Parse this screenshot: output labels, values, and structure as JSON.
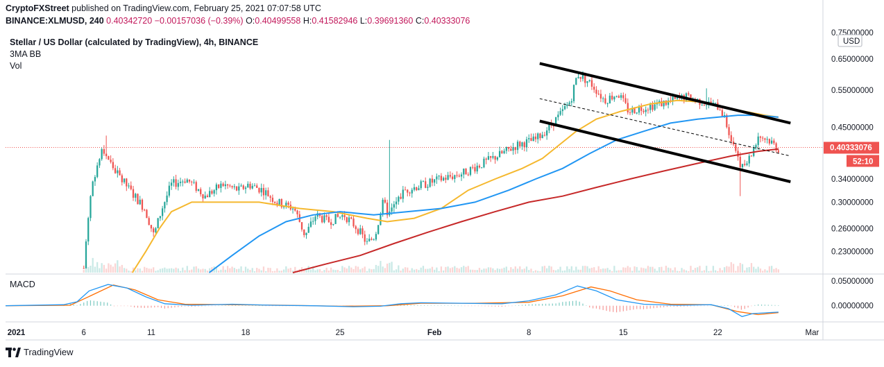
{
  "header": {
    "line1_publisher": "CryptoFXStreet",
    "line1_rest": "published on TradingView.com, February 25, 2021 07:07:58 UTC",
    "symbol": "BINANCE:XLMUSD, 240",
    "last": "0.40342720",
    "change": "−0.00157036 (−0.39%)",
    "o_label": "O:",
    "o": "0.40499558",
    "h_label": "H:",
    "h": "0.41582946",
    "l_label": "L:",
    "l": "0.39691360",
    "c_label": "C:",
    "c": "0.40333076"
  },
  "legend": {
    "title": "Stellar / US Dollar (calculated by TradingView), 4h, BINANCE",
    "indicator": "3MA BB",
    "volume": "Vol"
  },
  "macd_label": "MACD",
  "currency": "USD",
  "price_tag": "0.40333076",
  "countdown": "52:10",
  "footer": {
    "brand": "TradingView"
  },
  "colors": {
    "up": "#26a69a",
    "down": "#ef5350",
    "ma_fast": "#f5b82e",
    "ma_mid": "#2196f3",
    "ma_slow": "#c62828",
    "macd": "#2196f3",
    "signal": "#ff6d00",
    "price_tag": "#ef5350"
  },
  "chart_data": {
    "type": "candlestick",
    "y_axis": {
      "scale": "log",
      "range": [
        0.205,
        0.77
      ],
      "ticks": [
        "0.75000000",
        "0.65000000",
        "0.55000000",
        "0.45000000",
        "0.34000000",
        "0.30000000",
        "0.26000000",
        "0.23000000"
      ],
      "tick_values": [
        0.75,
        0.65,
        0.55,
        0.45,
        0.34,
        0.3,
        0.26,
        0.23
      ]
    },
    "macd_axis": {
      "range": [
        -0.03,
        0.06
      ],
      "ticks": [
        "0.05000000",
        "0.00000000"
      ],
      "tick_values": [
        0.05,
        0.0
      ]
    },
    "x_axis": {
      "ticks": [
        "2021",
        "6",
        "11",
        "18",
        "25",
        "Feb",
        "8",
        "15",
        "22",
        "Mar"
      ],
      "tick_days": [
        0,
        5,
        10,
        17,
        24,
        31,
        38,
        45,
        52,
        59
      ],
      "range_days": [
        -0.8,
        59.8
      ]
    },
    "last_price": 0.40333,
    "price_path": [
      [
        5.0,
        0.21
      ],
      [
        5.6,
        0.33
      ],
      [
        6.4,
        0.4
      ],
      [
        7.2,
        0.36
      ],
      [
        8.4,
        0.32
      ],
      [
        9.5,
        0.29
      ],
      [
        10.2,
        0.25
      ],
      [
        10.8,
        0.29
      ],
      [
        11.5,
        0.33
      ],
      [
        12.6,
        0.34
      ],
      [
        14.0,
        0.31
      ],
      [
        15.3,
        0.33
      ],
      [
        16.5,
        0.32
      ],
      [
        17.2,
        0.33
      ],
      [
        18.3,
        0.32
      ],
      [
        19.3,
        0.3
      ],
      [
        20.6,
        0.29
      ],
      [
        21.4,
        0.25
      ],
      [
        22.2,
        0.28
      ],
      [
        23.1,
        0.27
      ],
      [
        24.3,
        0.28
      ],
      [
        25.3,
        0.26
      ],
      [
        26.0,
        0.24
      ],
      [
        26.6,
        0.25
      ],
      [
        27.2,
        0.3
      ],
      [
        27.6,
        0.28
      ],
      [
        28.8,
        0.32
      ],
      [
        30.2,
        0.33
      ],
      [
        31.5,
        0.34
      ],
      [
        33.0,
        0.35
      ],
      [
        34.6,
        0.37
      ],
      [
        36.0,
        0.39
      ],
      [
        37.2,
        0.41
      ],
      [
        38.5,
        0.42
      ],
      [
        39.5,
        0.45
      ],
      [
        40.3,
        0.48
      ],
      [
        41.1,
        0.52
      ],
      [
        41.6,
        0.6
      ],
      [
        42.6,
        0.57
      ],
      [
        43.6,
        0.52
      ],
      [
        44.6,
        0.54
      ],
      [
        45.4,
        0.49
      ],
      [
        46.4,
        0.5
      ],
      [
        47.6,
        0.51
      ],
      [
        48.8,
        0.52
      ],
      [
        49.6,
        0.53
      ],
      [
        50.5,
        0.52
      ],
      [
        51.4,
        0.51
      ],
      [
        52.2,
        0.5
      ],
      [
        52.6,
        0.46
      ],
      [
        53.2,
        0.41
      ],
      [
        53.8,
        0.36
      ],
      [
        54.4,
        0.38
      ],
      [
        55.0,
        0.43
      ],
      [
        55.8,
        0.42
      ],
      [
        56.5,
        0.4
      ]
    ],
    "spikes": [
      {
        "day": 53.6,
        "low": 0.31
      },
      {
        "day": 6.7,
        "high": 0.43
      },
      {
        "day": 51.2,
        "high": 0.555
      },
      {
        "day": 27.6,
        "high": 0.42
      }
    ],
    "ma_fast": [
      [
        8.6,
        0.205
      ],
      [
        9.6,
        0.23
      ],
      [
        10.6,
        0.26
      ],
      [
        11.5,
        0.285
      ],
      [
        13.0,
        0.3
      ],
      [
        15.0,
        0.3
      ],
      [
        18.0,
        0.3
      ],
      [
        21.0,
        0.29
      ],
      [
        23.5,
        0.285
      ],
      [
        26.0,
        0.275
      ],
      [
        27.5,
        0.27
      ],
      [
        29.5,
        0.275
      ],
      [
        31.5,
        0.29
      ],
      [
        33.5,
        0.32
      ],
      [
        35.5,
        0.34
      ],
      [
        37.5,
        0.36
      ],
      [
        39.0,
        0.38
      ],
      [
        40.3,
        0.41
      ],
      [
        41.5,
        0.44
      ],
      [
        43.0,
        0.47
      ],
      [
        44.8,
        0.49
      ],
      [
        47.0,
        0.51
      ],
      [
        49.0,
        0.52
      ],
      [
        51.0,
        0.515
      ],
      [
        52.5,
        0.5
      ],
      [
        54.0,
        0.49
      ],
      [
        55.5,
        0.48
      ],
      [
        56.5,
        0.475
      ]
    ],
    "ma_mid": [
      [
        14.3,
        0.205
      ],
      [
        16.0,
        0.225
      ],
      [
        18.0,
        0.25
      ],
      [
        20.0,
        0.27
      ],
      [
        22.0,
        0.28
      ],
      [
        24.0,
        0.285
      ],
      [
        26.5,
        0.28
      ],
      [
        29.0,
        0.285
      ],
      [
        31.5,
        0.29
      ],
      [
        34.0,
        0.3
      ],
      [
        36.5,
        0.32
      ],
      [
        38.5,
        0.34
      ],
      [
        40.5,
        0.36
      ],
      [
        42.5,
        0.39
      ],
      [
        44.5,
        0.42
      ],
      [
        46.5,
        0.44
      ],
      [
        48.5,
        0.46
      ],
      [
        50.5,
        0.47
      ],
      [
        52.0,
        0.475
      ],
      [
        53.5,
        0.48
      ],
      [
        55.0,
        0.48
      ],
      [
        56.5,
        0.475
      ]
    ],
    "ma_slow": [
      [
        20.5,
        0.205
      ],
      [
        23.0,
        0.215
      ],
      [
        25.5,
        0.225
      ],
      [
        28.0,
        0.24
      ],
      [
        30.5,
        0.255
      ],
      [
        33.0,
        0.27
      ],
      [
        35.5,
        0.285
      ],
      [
        38.0,
        0.3
      ],
      [
        40.5,
        0.31
      ],
      [
        43.0,
        0.325
      ],
      [
        45.5,
        0.34
      ],
      [
        48.0,
        0.355
      ],
      [
        50.5,
        0.37
      ],
      [
        53.0,
        0.385
      ],
      [
        55.0,
        0.395
      ],
      [
        56.5,
        0.4
      ]
    ],
    "channel_upper": [
      [
        38.8,
        0.635
      ],
      [
        57.4,
        0.46
      ]
    ],
    "channel_lower": [
      [
        38.8,
        0.465
      ],
      [
        57.4,
        0.335
      ]
    ],
    "channel_mid": [
      [
        38.8,
        0.525
      ],
      [
        57.4,
        0.385
      ]
    ],
    "macd_line": [
      [
        -0.8,
        0.0
      ],
      [
        3.5,
        0.002
      ],
      [
        4.5,
        0.008
      ],
      [
        5.4,
        0.03
      ],
      [
        6.8,
        0.043
      ],
      [
        8.2,
        0.036
      ],
      [
        9.6,
        0.018
      ],
      [
        11.0,
        0.004
      ],
      [
        13.0,
        0.001
      ],
      [
        16.0,
        0.003
      ],
      [
        19.0,
        0.001
      ],
      [
        22.0,
        0.0
      ],
      [
        25.0,
        -0.002
      ],
      [
        27.0,
        -0.001
      ],
      [
        28.5,
        0.004
      ],
      [
        30.0,
        0.006
      ],
      [
        33.0,
        0.005
      ],
      [
        36.0,
        0.004
      ],
      [
        38.0,
        0.01
      ],
      [
        40.0,
        0.022
      ],
      [
        41.6,
        0.04
      ],
      [
        43.0,
        0.03
      ],
      [
        44.5,
        0.012
      ],
      [
        46.5,
        0.003
      ],
      [
        49.0,
        0.001
      ],
      [
        51.5,
        0.002
      ],
      [
        52.8,
        -0.006
      ],
      [
        53.8,
        -0.022
      ],
      [
        54.6,
        -0.016
      ],
      [
        56.5,
        -0.013
      ]
    ],
    "signal_line": [
      [
        -0.8,
        0.0
      ],
      [
        4.0,
        0.001
      ],
      [
        5.5,
        0.02
      ],
      [
        7.2,
        0.042
      ],
      [
        8.8,
        0.032
      ],
      [
        10.5,
        0.012
      ],
      [
        12.5,
        0.003
      ],
      [
        16.0,
        0.002
      ],
      [
        20.0,
        0.001
      ],
      [
        24.0,
        -0.001
      ],
      [
        27.5,
        0.0
      ],
      [
        30.0,
        0.005
      ],
      [
        34.0,
        0.005
      ],
      [
        38.0,
        0.007
      ],
      [
        40.5,
        0.02
      ],
      [
        42.6,
        0.038
      ],
      [
        44.0,
        0.03
      ],
      [
        46.0,
        0.012
      ],
      [
        48.5,
        0.003
      ],
      [
        51.5,
        0.002
      ],
      [
        53.5,
        -0.012
      ],
      [
        55.0,
        -0.018
      ],
      [
        56.5,
        -0.014
      ]
    ]
  }
}
